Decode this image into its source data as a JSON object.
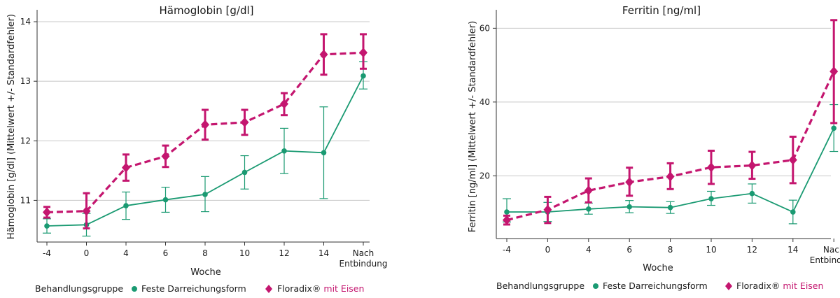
{
  "chart_data": [
    {
      "type": "line",
      "title": "Hämoglobin [g/dl]",
      "xlabel": "Woche",
      "ylabel": "Hämoglobin [g/dl] (Mittelwert +/- Standardfehler)",
      "categories": [
        "-4",
        "0",
        "4",
        "6",
        "8",
        "10",
        "12",
        "14",
        "Nach Entbindung"
      ],
      "ylim": [
        10.3,
        14.2
      ],
      "yticks": [
        11,
        12,
        13,
        14
      ],
      "grid": "horizontal",
      "legend_title": "Behandlungsgruppe",
      "legend_position": "bottom",
      "series": [
        {
          "name": "Feste Darreichungsform",
          "color": "#1a9a72",
          "style": "solid",
          "marker": "circle",
          "values": [
            10.57,
            10.59,
            10.91,
            11.01,
            11.1,
            11.47,
            11.83,
            11.8,
            13.09
          ],
          "err_low": [
            10.45,
            10.4,
            10.68,
            10.8,
            10.81,
            11.19,
            11.45,
            11.03,
            12.87
          ],
          "err_high": [
            10.69,
            10.78,
            11.14,
            11.22,
            11.4,
            11.75,
            12.21,
            12.57,
            13.33
          ]
        },
        {
          "name": "Floradix® mit Eisen",
          "color": "#c4166f",
          "style": "dashed",
          "marker": "diamond",
          "values": [
            10.8,
            10.82,
            11.55,
            11.74,
            12.27,
            12.31,
            12.62,
            13.45,
            13.48
          ],
          "err_low": [
            10.71,
            10.53,
            11.33,
            11.56,
            12.02,
            12.1,
            12.43,
            13.11,
            13.21
          ],
          "err_high": [
            10.89,
            11.12,
            11.77,
            11.92,
            12.52,
            12.52,
            12.8,
            13.79,
            13.79
          ]
        }
      ]
    },
    {
      "type": "line",
      "title": "Ferritin [ng/ml]",
      "xlabel": "Woche",
      "ylabel": "Ferritin [ng/ml] (Mittelwert +/- Standardfehler)",
      "categories": [
        "-4",
        "0",
        "4",
        "6",
        "8",
        "10",
        "12",
        "14",
        "Nach Entbindung"
      ],
      "ylim": [
        3,
        65
      ],
      "yticks": [
        20,
        40,
        60
      ],
      "grid": "horizontal",
      "legend_title": "Behandlungsgruppe",
      "legend_position": "bottom",
      "series": [
        {
          "name": "Feste Darreichungsform",
          "color": "#1a9a72",
          "style": "solid",
          "marker": "circle",
          "values": [
            10.2,
            10.2,
            11.0,
            11.6,
            11.4,
            13.8,
            15.2,
            10.2,
            32.9
          ],
          "err_low": [
            7.5,
            7.6,
            9.6,
            10.0,
            9.8,
            12.0,
            12.6,
            7.0,
            26.6
          ],
          "err_high": [
            13.8,
            12.8,
            12.6,
            13.3,
            13.0,
            15.8,
            17.8,
            13.4,
            39.3
          ]
        },
        {
          "name": "Floradix® mit Eisen",
          "color": "#c4166f",
          "style": "dashed",
          "marker": "diamond",
          "values": [
            8.0,
            10.8,
            16.0,
            18.3,
            19.8,
            22.3,
            22.8,
            24.3,
            48.3
          ],
          "err_low": [
            6.8,
            7.2,
            12.8,
            14.6,
            16.4,
            17.8,
            19.2,
            18.0,
            34.3
          ],
          "err_high": [
            9.2,
            14.3,
            19.3,
            22.2,
            23.4,
            26.8,
            26.5,
            30.6,
            62.2
          ]
        }
      ]
    }
  ]
}
